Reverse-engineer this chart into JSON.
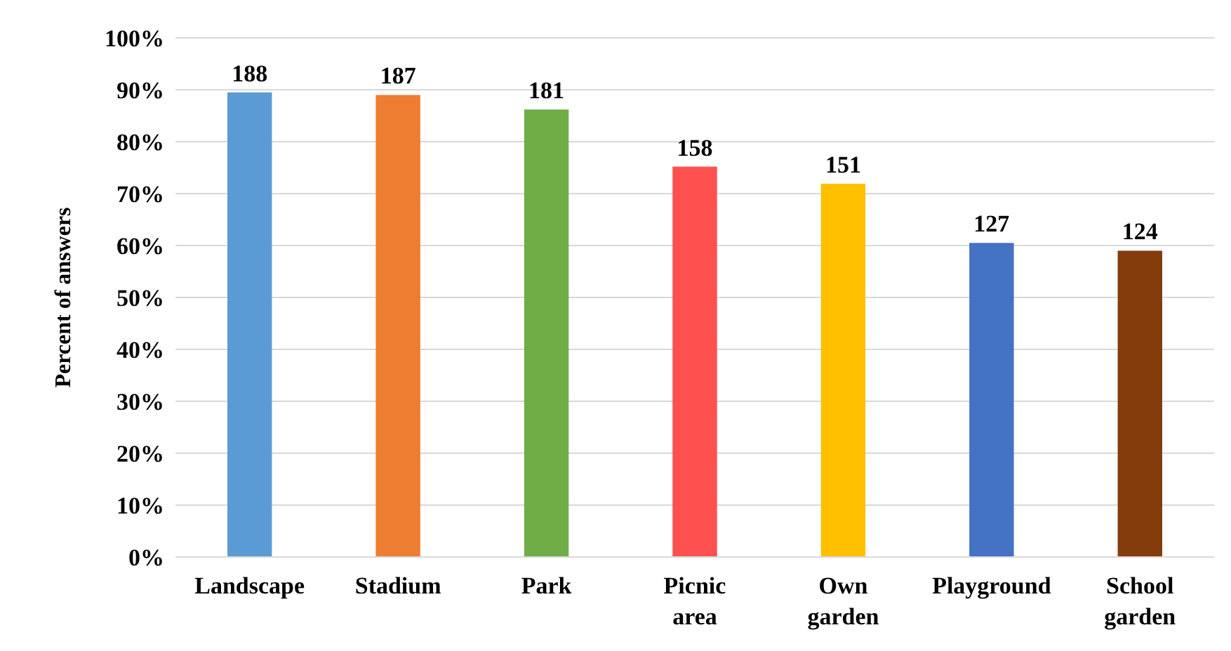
{
  "chart_data": {
    "type": "bar",
    "ylabel": "Percent of answers",
    "categories": [
      "Landscape",
      "Stadium",
      "Park",
      "Picnic area",
      "Own garden",
      "Playground",
      "School garden"
    ],
    "values": [
      89.5,
      89,
      86.2,
      75.2,
      71.9,
      60.5,
      59
    ],
    "annotations": [
      {
        "text": "188",
        "x": "Landscape",
        "y": 89.5
      },
      {
        "text": "187",
        "x": "Stadium",
        "y": 89
      },
      {
        "text": "181",
        "x": "Park",
        "y": 86.2
      },
      {
        "text": "158",
        "x": "Picnic area",
        "y": 75.2
      },
      {
        "text": "151",
        "x": "Own garden",
        "y": 71.9
      },
      {
        "text": "127",
        "x": "Playground",
        "y": 60.5
      },
      {
        "text": "124",
        "x": "School garden",
        "y": 59
      }
    ],
    "colors": [
      "#5b9bd5",
      "#ed7d31",
      "#70ad47",
      "#ff5050",
      "#ffc000",
      "#4472c4",
      "#843c0c"
    ],
    "ylim": [
      0,
      100
    ],
    "yticks": [
      {
        "value": 0,
        "label": "0%"
      },
      {
        "value": 10,
        "label": "10%"
      },
      {
        "value": 20,
        "label": "20%"
      },
      {
        "value": 30,
        "label": "30%"
      },
      {
        "value": 40,
        "label": "40%"
      },
      {
        "value": 50,
        "label": "50%"
      },
      {
        "value": 60,
        "label": "60%"
      },
      {
        "value": 70,
        "label": "70%"
      },
      {
        "value": 80,
        "label": "80%"
      },
      {
        "value": 90,
        "label": "90%"
      },
      {
        "value": 100,
        "label": "100%"
      }
    ],
    "grid": "y"
  }
}
